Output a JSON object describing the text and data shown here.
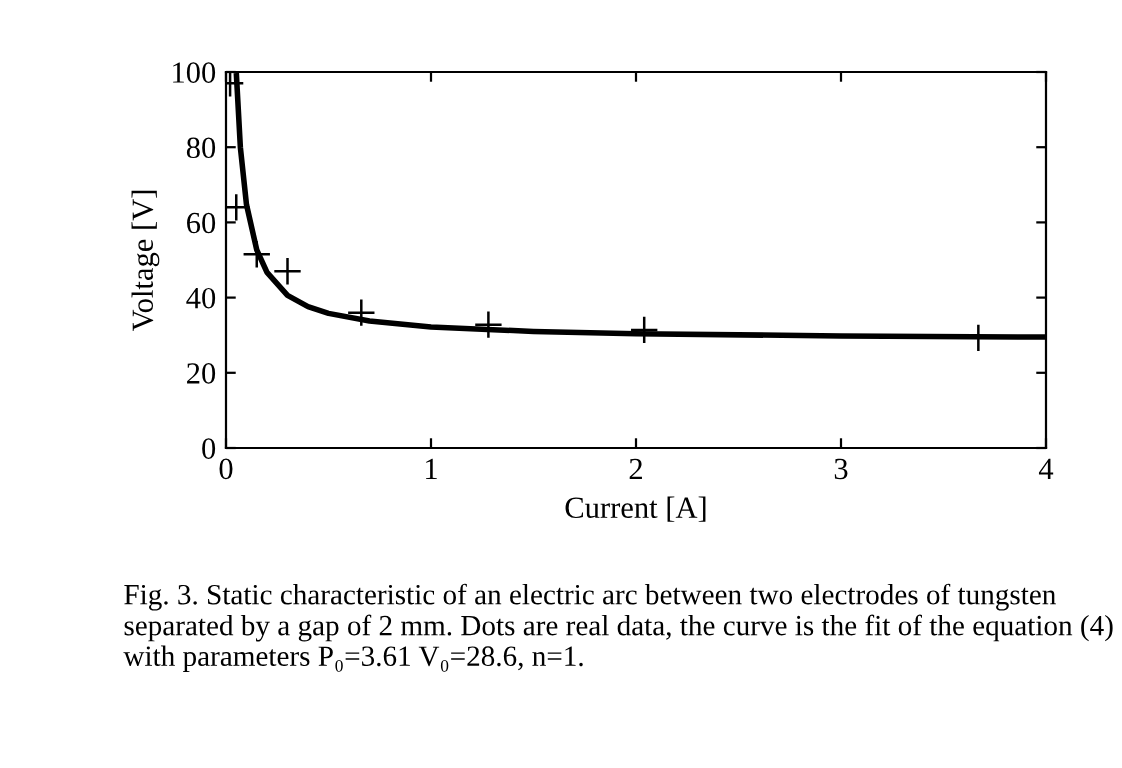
{
  "chart_data": {
    "type": "scatter",
    "xlabel": "Current [A]",
    "ylabel": "Voltage [V]",
    "xlim": [
      0,
      4
    ],
    "ylim": [
      0,
      100
    ],
    "xticks": [
      0,
      1,
      2,
      3,
      4
    ],
    "yticks": [
      0,
      20,
      40,
      60,
      80,
      100
    ],
    "grid": false,
    "legend": false,
    "series": [
      {
        "marker": "cross",
        "color": "#000000",
        "x": [
          0.02,
          0.05,
          0.15,
          0.3,
          0.66,
          1.28,
          2.04,
          3.67
        ],
        "values": [
          97,
          64,
          51.5,
          47,
          36,
          32.8,
          31.4,
          29.3
        ]
      },
      {
        "type": "line",
        "marker": "none",
        "line_style": "solid",
        "color": "#000000",
        "x": [
          0.051,
          0.07,
          0.1,
          0.15,
          0.2,
          0.3,
          0.4,
          0.5,
          0.7,
          1,
          1.5,
          2,
          3,
          4
        ],
        "values": [
          99,
          80,
          64.7,
          52.7,
          46.7,
          40.6,
          37.6,
          35.8,
          33.8,
          32.2,
          31,
          30.4,
          29.8,
          29.5
        ]
      }
    ],
    "annotations": [
      "Fig. 3. Static characteristic of an electric arc between two electrodes of tungsten separated by a gap of 2 mm. Dots are real data, the curve is the fit of the equation (4) with parameters P₀=3.61 V₀=28.6, n=1."
    ]
  }
}
